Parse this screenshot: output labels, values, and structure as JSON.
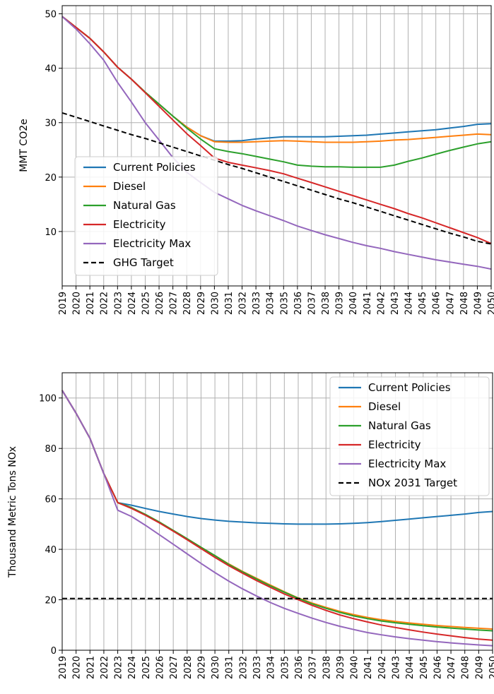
{
  "chart_data": [
    {
      "type": "line",
      "ylabel": "MMT CO2e",
      "ylim": [
        0,
        51.5
      ],
      "yticks": [
        10,
        20,
        30,
        40,
        50
      ],
      "x": [
        2019,
        2020,
        2021,
        2022,
        2023,
        2024,
        2025,
        2026,
        2027,
        2028,
        2029,
        2030,
        2031,
        2032,
        2033,
        2034,
        2035,
        2036,
        2037,
        2038,
        2039,
        2040,
        2041,
        2042,
        2043,
        2044,
        2045,
        2046,
        2047,
        2048,
        2049,
        2050
      ],
      "grid": true,
      "legend_position": "lower-left",
      "series": [
        {
          "name": "Current Policies",
          "color": "#1f77b4",
          "dashed": false,
          "values": [
            49.5,
            47.5,
            45.5,
            43.0,
            40.2,
            38.0,
            35.6,
            33.4,
            31.2,
            29.2,
            27.6,
            26.6,
            26.6,
            26.7,
            27.0,
            27.2,
            27.4,
            27.4,
            27.4,
            27.4,
            27.5,
            27.6,
            27.7,
            27.9,
            28.1,
            28.3,
            28.5,
            28.7,
            29.0,
            29.3,
            29.7,
            29.8
          ]
        },
        {
          "name": "Diesel",
          "color": "#ff7f0e",
          "dashed": false,
          "values": [
            49.5,
            47.5,
            45.5,
            43.0,
            40.2,
            38.0,
            35.6,
            33.4,
            31.2,
            29.2,
            27.6,
            26.5,
            26.4,
            26.4,
            26.5,
            26.6,
            26.7,
            26.6,
            26.5,
            26.4,
            26.4,
            26.4,
            26.5,
            26.6,
            26.8,
            26.9,
            27.1,
            27.3,
            27.5,
            27.7,
            27.9,
            27.8
          ]
        },
        {
          "name": "Natural Gas",
          "color": "#2ca02c",
          "dashed": false,
          "values": [
            49.5,
            47.5,
            45.5,
            43.0,
            40.2,
            38.0,
            35.6,
            33.4,
            31.2,
            29.0,
            27.0,
            25.2,
            24.7,
            24.3,
            23.8,
            23.3,
            22.8,
            22.2,
            22.0,
            21.9,
            21.9,
            21.8,
            21.8,
            21.8,
            22.2,
            22.9,
            23.5,
            24.2,
            24.9,
            25.5,
            26.1,
            26.5
          ]
        },
        {
          "name": "Electricity",
          "color": "#d62728",
          "dashed": false,
          "values": [
            49.5,
            47.5,
            45.5,
            43.0,
            40.2,
            38.0,
            35.5,
            33.0,
            30.5,
            28.0,
            25.8,
            23.5,
            22.7,
            22.2,
            21.7,
            21.2,
            20.6,
            19.8,
            19.0,
            18.2,
            17.4,
            16.6,
            15.8,
            15.0,
            14.2,
            13.3,
            12.5,
            11.6,
            10.7,
            9.8,
            8.9,
            7.8
          ]
        },
        {
          "name": "Electricity Max",
          "color": "#9467bd",
          "dashed": false,
          "values": [
            49.5,
            47.2,
            44.5,
            41.5,
            37.4,
            33.8,
            30.0,
            26.8,
            23.6,
            20.9,
            19.0,
            17.2,
            16.0,
            14.8,
            13.8,
            12.9,
            12.0,
            11.0,
            10.2,
            9.4,
            8.7,
            8.0,
            7.4,
            6.9,
            6.3,
            5.8,
            5.3,
            4.8,
            4.4,
            4.0,
            3.6,
            3.1
          ]
        },
        {
          "name": "GHG Target",
          "color": "#000000",
          "dashed": true,
          "values": [
            31.8,
            31.0,
            30.2,
            29.4,
            28.6,
            27.8,
            27.1,
            26.3,
            25.5,
            24.7,
            23.9,
            23.1,
            22.3,
            21.6,
            20.8,
            20.0,
            19.2,
            18.4,
            17.6,
            16.8,
            16.0,
            15.3,
            14.5,
            13.7,
            12.9,
            12.1,
            11.3,
            10.5,
            9.7,
            9.0,
            8.2,
            7.7
          ]
        }
      ]
    },
    {
      "type": "line",
      "ylabel": "Thousand Metric Tons NOx",
      "ylim": [
        0,
        110
      ],
      "yticks": [
        0,
        20,
        40,
        60,
        80,
        100
      ],
      "x": [
        2019,
        2020,
        2021,
        2022,
        2023,
        2024,
        2025,
        2026,
        2027,
        2028,
        2029,
        2030,
        2031,
        2032,
        2033,
        2034,
        2035,
        2036,
        2037,
        2038,
        2039,
        2040,
        2041,
        2042,
        2043,
        2044,
        2045,
        2046,
        2047,
        2048,
        2049,
        2050
      ],
      "grid": true,
      "legend_position": "upper-right",
      "series": [
        {
          "name": "Current Policies",
          "color": "#1f77b4",
          "dashed": false,
          "values": [
            103,
            94,
            84,
            70,
            58.5,
            57.5,
            56.2,
            55.0,
            54.0,
            53.0,
            52.2,
            51.6,
            51.1,
            50.8,
            50.5,
            50.3,
            50.1,
            50.0,
            50.0,
            50.0,
            50.1,
            50.3,
            50.6,
            51.0,
            51.5,
            52.0,
            52.5,
            53.0,
            53.5,
            54.0,
            54.6,
            55.0
          ]
        },
        {
          "name": "Diesel",
          "color": "#ff7f0e",
          "dashed": false,
          "values": [
            103,
            94,
            84,
            70,
            58.5,
            56.5,
            53.8,
            50.8,
            47.5,
            44.2,
            40.8,
            37.5,
            34.2,
            31.2,
            28.5,
            25.8,
            23.2,
            20.7,
            18.7,
            17.0,
            15.4,
            14.1,
            13.0,
            12.1,
            11.4,
            10.8,
            10.3,
            9.8,
            9.4,
            9.0,
            8.7,
            8.4
          ]
        },
        {
          "name": "Natural Gas",
          "color": "#2ca02c",
          "dashed": false,
          "values": [
            103,
            94,
            84,
            70,
            58.5,
            56.5,
            53.8,
            50.8,
            47.5,
            44.2,
            40.8,
            37.5,
            34.0,
            31.0,
            28.2,
            25.5,
            23.0,
            20.6,
            18.4,
            16.6,
            15.0,
            13.6,
            12.5,
            11.6,
            10.9,
            10.3,
            9.7,
            9.2,
            8.8,
            8.4,
            8.0,
            7.7
          ]
        },
        {
          "name": "Electricity",
          "color": "#d62728",
          "dashed": false,
          "values": [
            103,
            94,
            84,
            70,
            58.5,
            56.2,
            53.5,
            50.5,
            47.2,
            43.8,
            40.3,
            36.8,
            33.5,
            30.5,
            27.6,
            24.9,
            22.3,
            20.0,
            17.8,
            15.8,
            14.0,
            12.5,
            11.2,
            10.0,
            9.0,
            8.1,
            7.2,
            6.4,
            5.7,
            5.0,
            4.4,
            4.0
          ]
        },
        {
          "name": "Electricity Max",
          "color": "#9467bd",
          "dashed": false,
          "values": [
            103,
            94,
            84,
            70,
            55.5,
            53.0,
            49.5,
            45.8,
            42.0,
            38.2,
            34.4,
            30.8,
            27.4,
            24.3,
            21.5,
            18.9,
            16.6,
            14.6,
            12.7,
            11.0,
            9.5,
            8.2,
            7.0,
            6.1,
            5.3,
            4.6,
            4.0,
            3.4,
            2.9,
            2.5,
            2.1,
            1.8
          ]
        },
        {
          "name": "NOx 2031 Target",
          "color": "#000000",
          "dashed": true,
          "values": [
            20.5,
            20.5,
            20.5,
            20.5,
            20.5,
            20.5,
            20.5,
            20.5,
            20.5,
            20.5,
            20.5,
            20.5,
            20.5,
            20.5,
            20.5,
            20.5,
            20.5,
            20.5,
            20.5,
            20.5,
            20.5,
            20.5,
            20.5,
            20.5,
            20.5,
            20.5,
            20.5,
            20.5,
            20.5,
            20.5,
            20.5,
            20.5
          ]
        }
      ]
    }
  ]
}
